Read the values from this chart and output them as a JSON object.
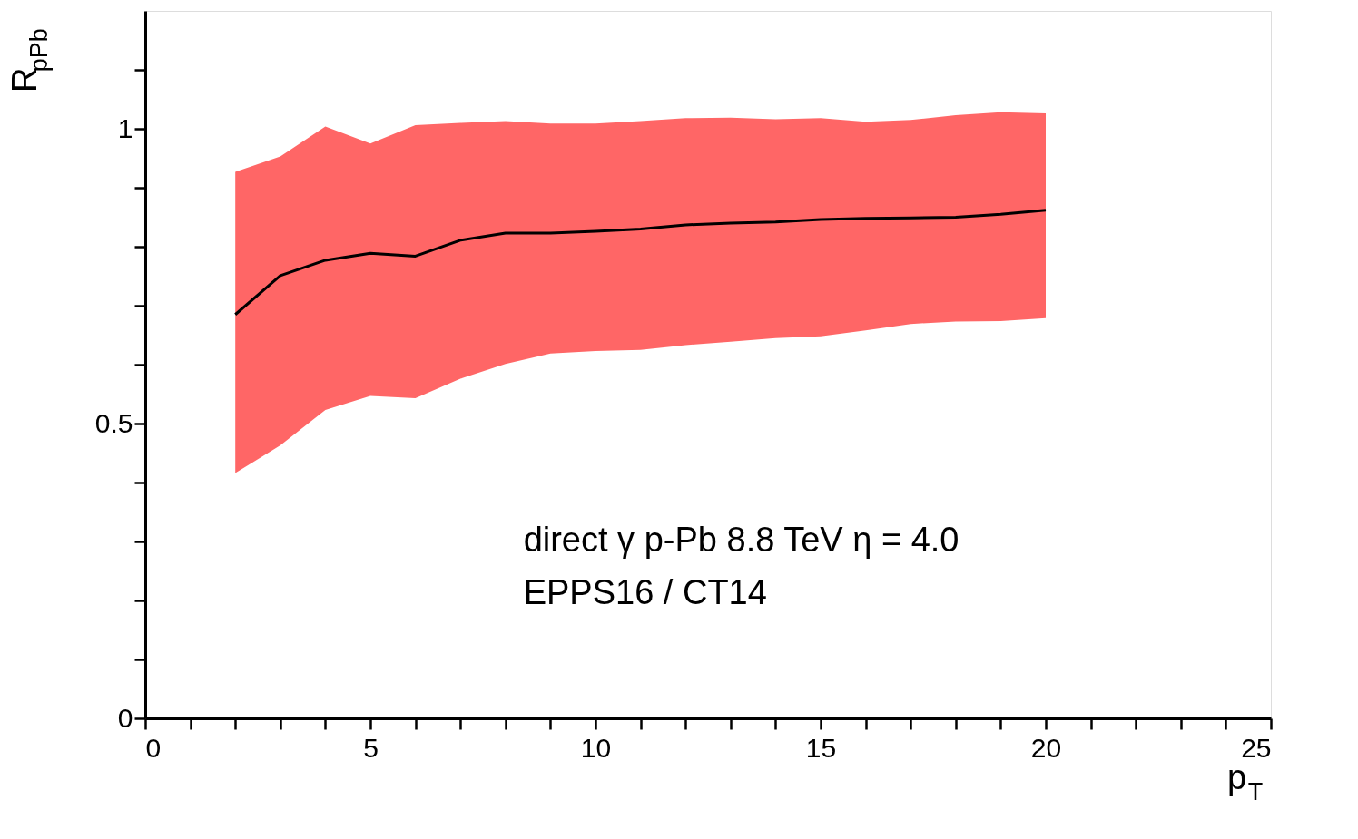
{
  "chart_data": {
    "type": "line",
    "xlabel": "p$_{T}$",
    "ylabel": "R$_{pPb}$",
    "annotations": [
      "direct γ  p-Pb 8.8 TeV η = 4.0",
      "EPPS16 / CT14"
    ],
    "x": [
      2,
      3,
      4,
      5,
      6,
      7,
      8,
      9,
      10,
      11,
      12,
      13,
      14,
      15,
      16,
      17,
      18,
      19,
      20
    ],
    "colors": [
      "#ff6666"
    ],
    "series": [
      {
        "color": "#000000",
        "values": [
          0.685,
          0.751,
          0.777,
          0.789,
          0.784,
          0.811,
          0.823,
          0.823,
          0.826,
          0.83,
          0.837,
          0.84,
          0.842,
          0.846,
          0.848,
          0.849,
          0.85,
          0.855,
          0.862
        ],
        "lower": [
          0.416,
          0.463,
          0.523,
          0.547,
          0.543,
          0.576,
          0.601,
          0.619,
          0.623,
          0.625,
          0.633,
          0.639,
          0.645,
          0.648,
          0.658,
          0.669,
          0.673,
          0.674,
          0.679
        ],
        "upper": [
          0.927,
          0.953,
          1.004,
          0.975,
          1.006,
          1.01,
          1.013,
          1.009,
          1.009,
          1.013,
          1.018,
          1.019,
          1.016,
          1.018,
          1.012,
          1.015,
          1.023,
          1.028,
          1.026
        ]
      }
    ],
    "xlim": [
      0,
      25
    ],
    "ylim": [
      0,
      1.2
    ],
    "xticks": [
      0,
      {
        "value": 1,
        "label": null
      },
      {
        "value": 2,
        "label": null
      },
      {
        "value": 3,
        "label": null
      },
      {
        "value": 4,
        "label": null
      },
      5,
      {
        "value": 6,
        "label": null
      },
      {
        "value": 7,
        "label": null
      },
      {
        "value": 8,
        "label": null
      },
      {
        "value": 9,
        "label": null
      },
      10,
      {
        "value": 11,
        "label": null
      },
      {
        "value": 12,
        "label": null
      },
      {
        "value": 13,
        "label": null
      },
      {
        "value": 14,
        "label": null
      },
      15,
      {
        "value": 16,
        "label": null
      },
      {
        "value": 17,
        "label": null
      },
      {
        "value": 18,
        "label": null
      },
      {
        "value": 19,
        "label": null
      },
      20,
      {
        "value": 21,
        "label": null
      },
      {
        "value": 22,
        "label": null
      },
      {
        "value": 23,
        "label": null
      },
      {
        "value": 24,
        "label": null
      },
      25
    ],
    "yticks": [
      0,
      {
        "value": 0.1,
        "label": null
      },
      {
        "value": 0.2,
        "label": null
      },
      {
        "value": 0.3,
        "label": null
      },
      {
        "value": 0.4,
        "label": null
      },
      0.5,
      {
        "value": 0.6,
        "label": null
      },
      {
        "value": 0.7,
        "label": null
      },
      {
        "value": 0.8,
        "label": null
      },
      {
        "value": 0.9,
        "label": null
      },
      1,
      {
        "value": 1.1,
        "label": null
      }
    ],
    "grid": false,
    "legend": false,
    "marker": "none",
    "line_style": "solid"
  }
}
